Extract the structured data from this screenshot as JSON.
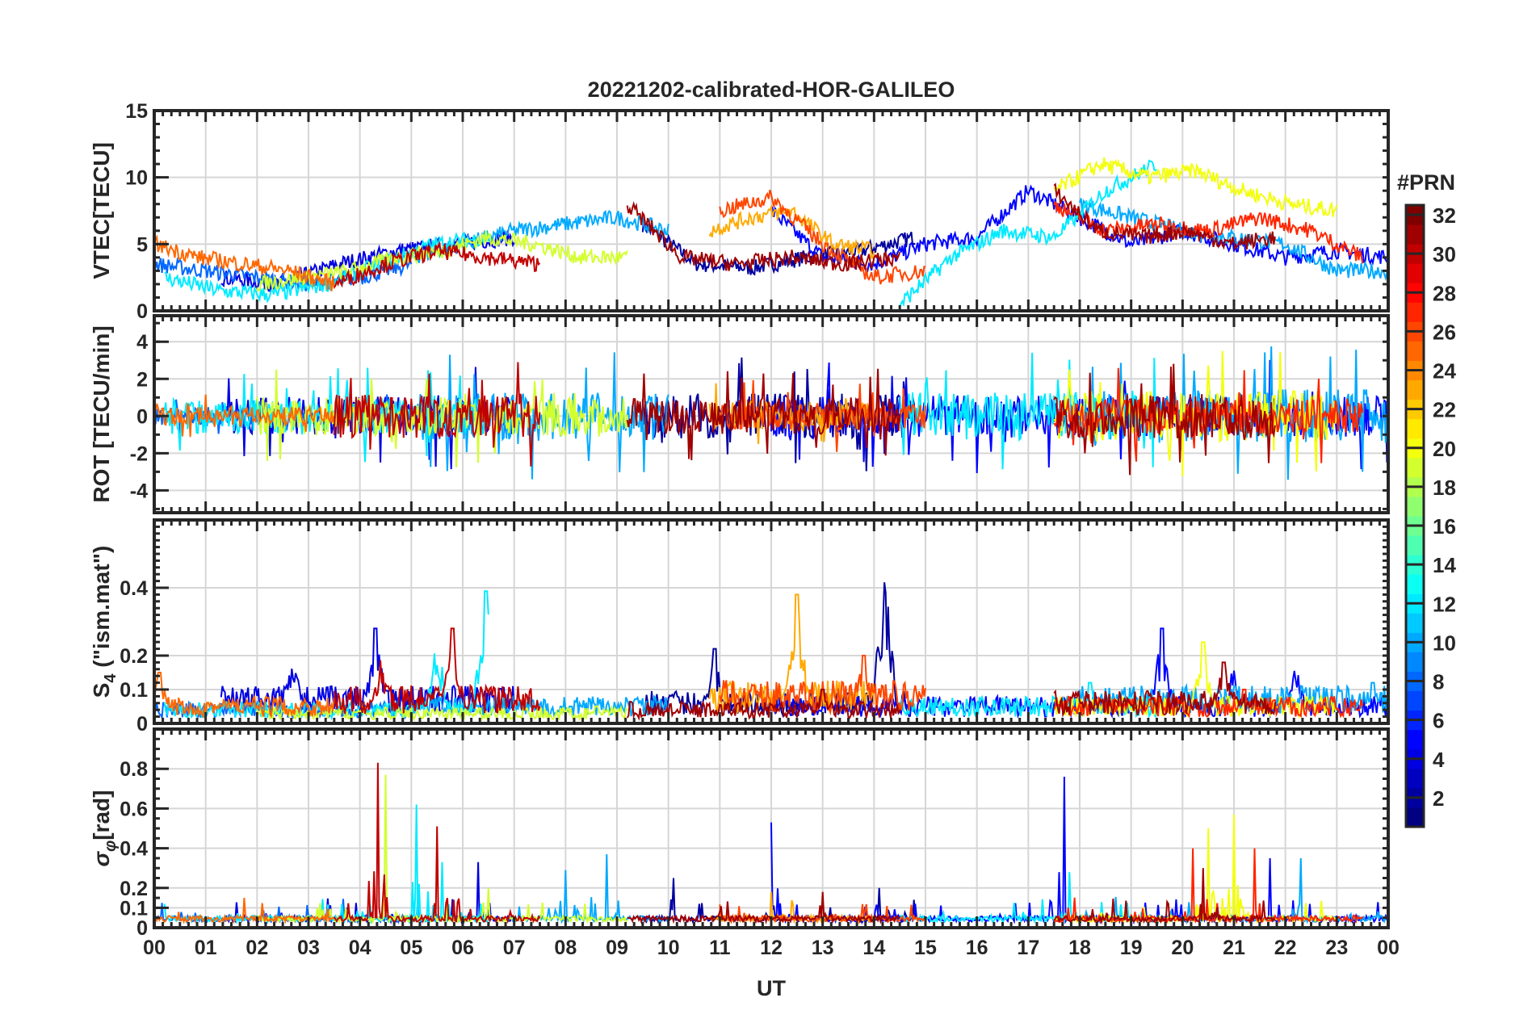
{
  "chart_data": {
    "type": "line",
    "title": "20221202-calibrated-HOR-GALILEO",
    "xlabel": "UT",
    "x_tick_labels": [
      "00",
      "01",
      "02",
      "03",
      "04",
      "05",
      "06",
      "07",
      "08",
      "09",
      "10",
      "11",
      "12",
      "13",
      "14",
      "15",
      "16",
      "17",
      "18",
      "19",
      "20",
      "21",
      "22",
      "23",
      "00"
    ],
    "xlim_hours": [
      0,
      24
    ],
    "grid": true,
    "colorbar": {
      "label": "#PRN",
      "range": [
        1,
        32
      ],
      "ticks": [
        "2",
        "4",
        "6",
        "8",
        "10",
        "12",
        "14",
        "16",
        "18",
        "20",
        "22",
        "24",
        "26",
        "28",
        "30",
        "32"
      ],
      "colormap": "jet",
      "placement": "right"
    },
    "panels": [
      {
        "id": "vtec",
        "ylabel": "VTEC[TECU]",
        "ylim": [
          0,
          15
        ],
        "ticks": [
          "0",
          "5",
          "10",
          "15"
        ],
        "tick_values": [
          0,
          5,
          10,
          15
        ]
      },
      {
        "id": "rot",
        "ylabel": "ROT [TECU/min]",
        "ylim": [
          -5.2,
          5.4
        ],
        "ticks": [
          "-4",
          "-2",
          "0",
          "2",
          "4"
        ],
        "tick_values": [
          -4,
          -2,
          0,
          2,
          4
        ]
      },
      {
        "id": "s4",
        "ylabel": "S4 (\"ism.mat\")",
        "ylabel_main": "S",
        "ylabel_sub": "4",
        "ylabel_rest": " (\"ism.mat\")",
        "ylim": [
          0,
          0.6
        ],
        "ticks": [
          "0",
          "0.1",
          "0.2",
          "0.4"
        ],
        "tick_values": [
          0,
          0.1,
          0.2,
          0.4
        ]
      },
      {
        "id": "sigma",
        "ylabel": "σφ[rad]",
        "ylabel_main": "σ",
        "ylabel_sub": "φ",
        "ylabel_rest": "[rad]",
        "ylim": [
          0,
          1.0
        ],
        "ticks": [
          "0",
          "0.1",
          "0.2",
          "0.4",
          "0.6",
          "0.8"
        ],
        "tick_values": [
          0,
          0.1,
          0.2,
          0.4,
          0.6,
          0.8
        ]
      }
    ],
    "series": [
      {
        "prn": 2,
        "start": 9.5,
        "end": 14.8,
        "vtec": [
          6.5,
          3.5,
          3.2,
          4,
          4.5,
          5.5
        ],
        "rot_amp": 1.5,
        "s4_base": 0.06,
        "s4_peaks": [
          [
            10.9,
            0.22
          ],
          [
            14.2,
            0.46
          ]
        ],
        "sig_peaks": [
          [
            10.1,
            0.25
          ],
          [
            14.1,
            0.2
          ]
        ]
      },
      {
        "prn": 4,
        "start": 1.3,
        "end": 7.0,
        "vtec": [
          2.5,
          2,
          3.5,
          4.5,
          5,
          5.5
        ],
        "rot_amp": 1.3,
        "s4_base": 0.07,
        "s4_peaks": [
          [
            4.3,
            0.28
          ],
          [
            2.7,
            0.2
          ]
        ],
        "sig_peaks": [
          [
            6.3,
            0.33
          ]
        ]
      },
      {
        "prn": 5,
        "start": 12.0,
        "end": 24.0,
        "vtec": [
          7.5,
          4,
          3.5,
          5,
          5.5,
          9,
          7,
          5,
          6,
          5,
          4,
          4.5,
          4
        ],
        "rot_amp": 1.4,
        "s4_base": 0.05,
        "s4_peaks": [
          [
            19.6,
            0.28
          ],
          [
            21.0,
            0.18
          ],
          [
            22.2,
            0.2
          ]
        ],
        "sig_peaks": [
          [
            17.7,
            0.76
          ],
          [
            12.0,
            0.53
          ],
          [
            21.7,
            0.35
          ]
        ]
      },
      {
        "prn": 8,
        "start": 0.0,
        "end": 5.0,
        "vtec": [
          3.5,
          3,
          2.5,
          2,
          2.5,
          3.5
        ],
        "rot_amp": 0.6,
        "s4_base": 0.04,
        "s4_peaks": [],
        "sig_peaks": []
      },
      {
        "prn": 10,
        "start": 5.0,
        "end": 10.0,
        "vtec": [
          4,
          5,
          6,
          6.5,
          7,
          6
        ],
        "rot_amp": 1.6,
        "s4_base": 0.05,
        "s4_peaks": [
          [
            8.1,
            0.05
          ]
        ],
        "sig_peaks": [
          [
            8.0,
            0.29
          ],
          [
            8.8,
            0.37
          ]
        ]
      },
      {
        "prn": 10,
        "start": 18.0,
        "end": 24.0,
        "vtec": [
          8,
          7,
          6,
          5.5,
          5,
          3,
          3
        ],
        "rot_amp": 1.8,
        "s4_base": 0.07,
        "s4_peaks": [
          [
            23.7,
            0.12
          ]
        ],
        "sig_peaks": [
          [
            22.3,
            0.35
          ]
        ]
      },
      {
        "prn": 12,
        "start": 0.2,
        "end": 6.5,
        "vtec": [
          2.5,
          1.5,
          1.2,
          2,
          3.5,
          5,
          5.5
        ],
        "rot_amp": 1.2,
        "s4_base": 0.04,
        "s4_peaks": [
          [
            6.45,
            0.39
          ],
          [
            5.5,
            0.25
          ]
        ],
        "sig_peaks": [
          [
            5.1,
            0.62
          ],
          [
            5.6,
            0.33
          ]
        ]
      },
      {
        "prn": 12,
        "start": 14.5,
        "end": 19.5,
        "vtec": [
          0.5,
          4,
          6,
          5.5,
          9,
          11
        ],
        "rot_amp": 1.6,
        "s4_base": 0.05,
        "s4_peaks": [
          [
            18.2,
            0.12
          ]
        ],
        "sig_peaks": [
          [
            17.8,
            0.28
          ]
        ]
      },
      {
        "prn": 19,
        "start": 2.0,
        "end": 9.2,
        "vtec": [
          2,
          2.5,
          3,
          4,
          4.5,
          5.5,
          5,
          4,
          4
        ],
        "rot_amp": 1.3,
        "s4_base": 0.03,
        "s4_peaks": [
          [
            8.6,
            0.05
          ]
        ],
        "sig_peaks": [
          [
            4.5,
            0.77
          ],
          [
            6.5,
            0.2
          ]
        ]
      },
      {
        "prn": 20,
        "start": 17.5,
        "end": 23.0,
        "vtec": [
          9,
          11,
          10,
          10.5,
          9,
          8,
          7.5
        ],
        "rot_amp": 1.7,
        "s4_base": 0.05,
        "s4_peaks": [
          [
            20.4,
            0.24
          ]
        ],
        "sig_peaks": [
          [
            20.5,
            0.5
          ],
          [
            21.0,
            0.57
          ]
        ]
      },
      {
        "prn": 23,
        "start": 10.8,
        "end": 14.0,
        "vtec": [
          6,
          7,
          7.5,
          5,
          4.5
        ],
        "rot_amp": 1.0,
        "s4_base": 0.08,
        "s4_peaks": [
          [
            12.5,
            0.38
          ],
          [
            10.7,
            0.2
          ]
        ],
        "sig_peaks": [
          [
            12.0,
            0.18
          ]
        ]
      },
      {
        "prn": 25,
        "start": 0.0,
        "end": 3.5,
        "vtec": [
          5,
          4,
          3.5,
          3,
          2
        ],
        "rot_amp": 0.6,
        "s4_base": 0.05,
        "s4_peaks": [
          [
            0.1,
            0.15
          ]
        ],
        "sig_peaks": []
      },
      {
        "prn": 26,
        "start": 11.0,
        "end": 15.0,
        "vtec": [
          7.5,
          8.5,
          5,
          2.5,
          3
        ],
        "rot_amp": 0.9,
        "s4_base": 0.08,
        "s4_peaks": [
          [
            13.8,
            0.2
          ]
        ],
        "sig_peaks": []
      },
      {
        "prn": 27,
        "start": 17.5,
        "end": 23.5,
        "vtec": [
          8,
          6,
          6.5,
          6,
          7,
          6,
          4
        ],
        "rot_amp": 1.2,
        "s4_base": 0.05,
        "s4_peaks": [
          [
            21.2,
            0.1
          ]
        ],
        "sig_peaks": [
          [
            20.2,
            0.4
          ],
          [
            21.4,
            0.4
          ]
        ]
      },
      {
        "prn": 30,
        "start": 3.5,
        "end": 7.5,
        "vtec": [
          2,
          3.5,
          4.5,
          4,
          3.5
        ],
        "rot_amp": 1.5,
        "s4_base": 0.07,
        "s4_peaks": [
          [
            5.8,
            0.28
          ],
          [
            4.4,
            0.2
          ]
        ],
        "sig_peaks": [
          [
            4.35,
            0.83
          ],
          [
            5.5,
            0.51
          ]
        ]
      },
      {
        "prn": 31,
        "start": 9.2,
        "end": 14.5,
        "vtec": [
          8,
          4,
          3.5,
          4,
          3.5,
          4
        ],
        "rot_amp": 1.2,
        "s4_base": 0.04,
        "s4_peaks": [
          [
            13.0,
            0.1
          ]
        ],
        "sig_peaks": [
          [
            13.0,
            0.18
          ]
        ]
      },
      {
        "prn": 31,
        "start": 17.5,
        "end": 21.8,
        "vtec": [
          9,
          6,
          5.5,
          6,
          5,
          5.5
        ],
        "rot_amp": 1.5,
        "s4_base": 0.06,
        "s4_peaks": [
          [
            20.8,
            0.18
          ]
        ],
        "sig_peaks": [
          [
            20.4,
            0.3
          ]
        ]
      }
    ]
  }
}
